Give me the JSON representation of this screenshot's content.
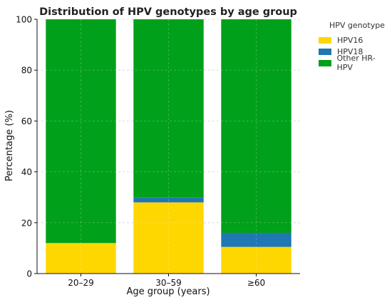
{
  "chart_data": {
    "type": "bar",
    "stacked": true,
    "title": "Distribution of HPV genotypes by age group",
    "xlabel": "Age group (years)",
    "ylabel": "Percentage (%)",
    "ylim": [
      0,
      100
    ],
    "yticks": [
      0,
      20,
      40,
      60,
      80,
      100
    ],
    "grid": true,
    "legend_placement": "right",
    "legend_title": "HPV genotype",
    "categories": [
      "20–29",
      "30–59",
      "≥60"
    ],
    "series": [
      {
        "name": "HPV16",
        "color": "#ffd700",
        "values": [
          12,
          28,
          10.5
        ]
      },
      {
        "name": "HPV18",
        "color": "#1f77b4",
        "values": [
          0,
          2,
          5.5
        ]
      },
      {
        "name": "Other HR-HPV",
        "color": "#00a01a",
        "values": [
          88,
          70,
          84
        ]
      }
    ]
  }
}
